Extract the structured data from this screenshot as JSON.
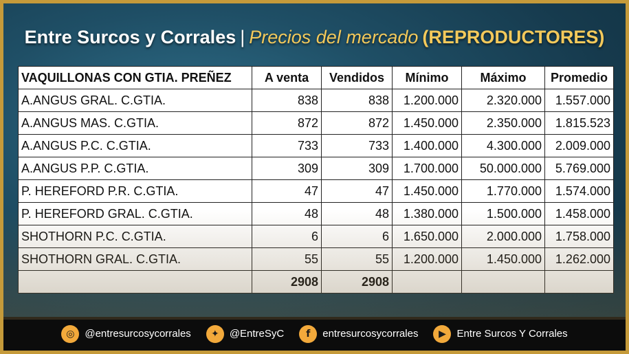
{
  "title": {
    "part1": "Entre Surcos y Corrales",
    "separator": "|",
    "part2": "Precios del mercado",
    "part3": "(REPRODUCTORES)"
  },
  "table": {
    "headers": [
      "VAQUILLONAS CON GTIA. PREÑEZ",
      "A venta",
      "Vendidos",
      "Mínimo",
      "Máximo",
      "Promedio"
    ],
    "rows": [
      [
        "A.ANGUS GRAL. C.GTIA.",
        "838",
        "838",
        "1.200.000",
        "2.320.000",
        "1.557.000"
      ],
      [
        "A.ANGUS MAS. C.GTIA.",
        "872",
        "872",
        "1.450.000",
        "2.350.000",
        "1.815.523"
      ],
      [
        "A.ANGUS P.C. C.GTIA.",
        "733",
        "733",
        "1.400.000",
        "4.300.000",
        "2.009.000"
      ],
      [
        "A.ANGUS P.P. C.GTIA.",
        "309",
        "309",
        "1.700.000",
        "50.000.000",
        "5.769.000"
      ],
      [
        "P. HEREFORD P.R. C.GTIA.",
        "47",
        "47",
        "1.450.000",
        "1.770.000",
        "1.574.000"
      ],
      [
        "P. HEREFORD GRAL. C.GTIA.",
        "48",
        "48",
        "1.380.000",
        "1.500.000",
        "1.458.000"
      ],
      [
        "SHOTHORN P.C. C.GTIA.",
        "6",
        "6",
        "1.650.000",
        "2.000.000",
        "1.758.000"
      ],
      [
        "SHOTHORN GRAL. C.GTIA.",
        "55",
        "55",
        "1.200.000",
        "1.450.000",
        "1.262.000"
      ]
    ],
    "totals": [
      "",
      "2908",
      "2908",
      "",
      "",
      ""
    ]
  },
  "footer": {
    "items": [
      {
        "icon": "instagram-icon",
        "glyph": "◎",
        "label": "@entresurcosycorrales"
      },
      {
        "icon": "twitter-icon",
        "glyph": "✦",
        "label": "@EntreSyC"
      },
      {
        "icon": "facebook-icon",
        "glyph": "f",
        "label": "entresurcosycorrales"
      },
      {
        "icon": "youtube-icon",
        "glyph": "▶",
        "label": "Entre Surcos Y Corrales"
      }
    ]
  },
  "colors": {
    "accent": "#f3c95b",
    "frame": "#c59a3a",
    "icon_bg": "#f2a93b"
  }
}
